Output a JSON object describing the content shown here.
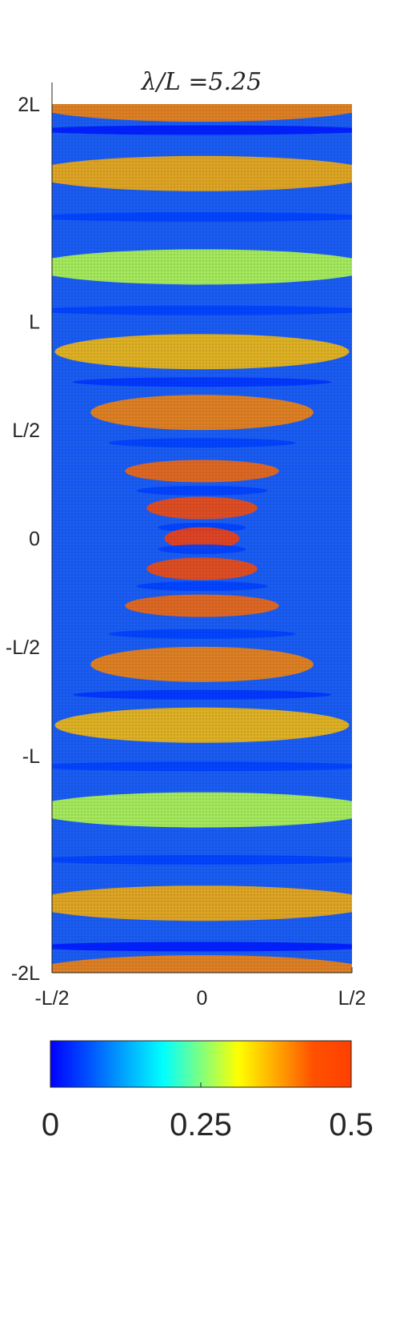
{
  "chart_data": {
    "type": "heatmap",
    "title": "λ/L =5.25",
    "xlabel": "",
    "ylabel": "",
    "x_tick_labels": [
      "-L/2",
      "0",
      "L/2"
    ],
    "x_tick_values": [
      -0.5,
      0,
      0.5
    ],
    "y_tick_labels": [
      "2L",
      "L",
      "L/2",
      "0",
      "-L/2",
      "-L",
      "-2L"
    ],
    "y_tick_values": [
      2,
      1,
      0.5,
      0,
      -0.5,
      -1,
      -2
    ],
    "xlim": [
      -0.5,
      0.5
    ],
    "ylim": [
      -2,
      2
    ],
    "units_note": "positions in units of L",
    "colorbar": {
      "tick_labels": [
        "0",
        "0.25",
        "0.5"
      ],
      "tick_values": [
        0,
        0.25,
        0.5
      ],
      "range": [
        0,
        0.5
      ],
      "colormap": "jet",
      "orientation": "horizontal"
    },
    "bands": [
      {
        "y": 2.0,
        "value": 0.4
      },
      {
        "y": 1.88,
        "value": 0.02
      },
      {
        "y": 1.68,
        "value": 0.37
      },
      {
        "y": 1.48,
        "value": 0.05
      },
      {
        "y": 1.25,
        "value": 0.28
      },
      {
        "y": 1.05,
        "value": 0.05
      },
      {
        "y": 0.86,
        "value": 0.36
      },
      {
        "y": 0.72,
        "value": 0.04
      },
      {
        "y": 0.58,
        "value": 0.4
      },
      {
        "y": 0.44,
        "value": 0.05
      },
      {
        "y": 0.31,
        "value": 0.42
      },
      {
        "y": 0.22,
        "value": 0.05
      },
      {
        "y": 0.14,
        "value": 0.46
      },
      {
        "y": 0.05,
        "value": 0.05
      },
      {
        "y": 0.0,
        "value": 0.5
      },
      {
        "y": -0.05,
        "value": 0.05
      },
      {
        "y": -0.14,
        "value": 0.46
      },
      {
        "y": -0.22,
        "value": 0.05
      },
      {
        "y": -0.31,
        "value": 0.42
      },
      {
        "y": -0.44,
        "value": 0.05
      },
      {
        "y": -0.58,
        "value": 0.4
      },
      {
        "y": -0.72,
        "value": 0.04
      },
      {
        "y": -0.86,
        "value": 0.36
      },
      {
        "y": -1.05,
        "value": 0.05
      },
      {
        "y": -1.25,
        "value": 0.28
      },
      {
        "y": -1.48,
        "value": 0.05
      },
      {
        "y": -1.68,
        "value": 0.37
      },
      {
        "y": -1.88,
        "value": 0.02
      },
      {
        "y": -2.0,
        "value": 0.4
      }
    ]
  }
}
